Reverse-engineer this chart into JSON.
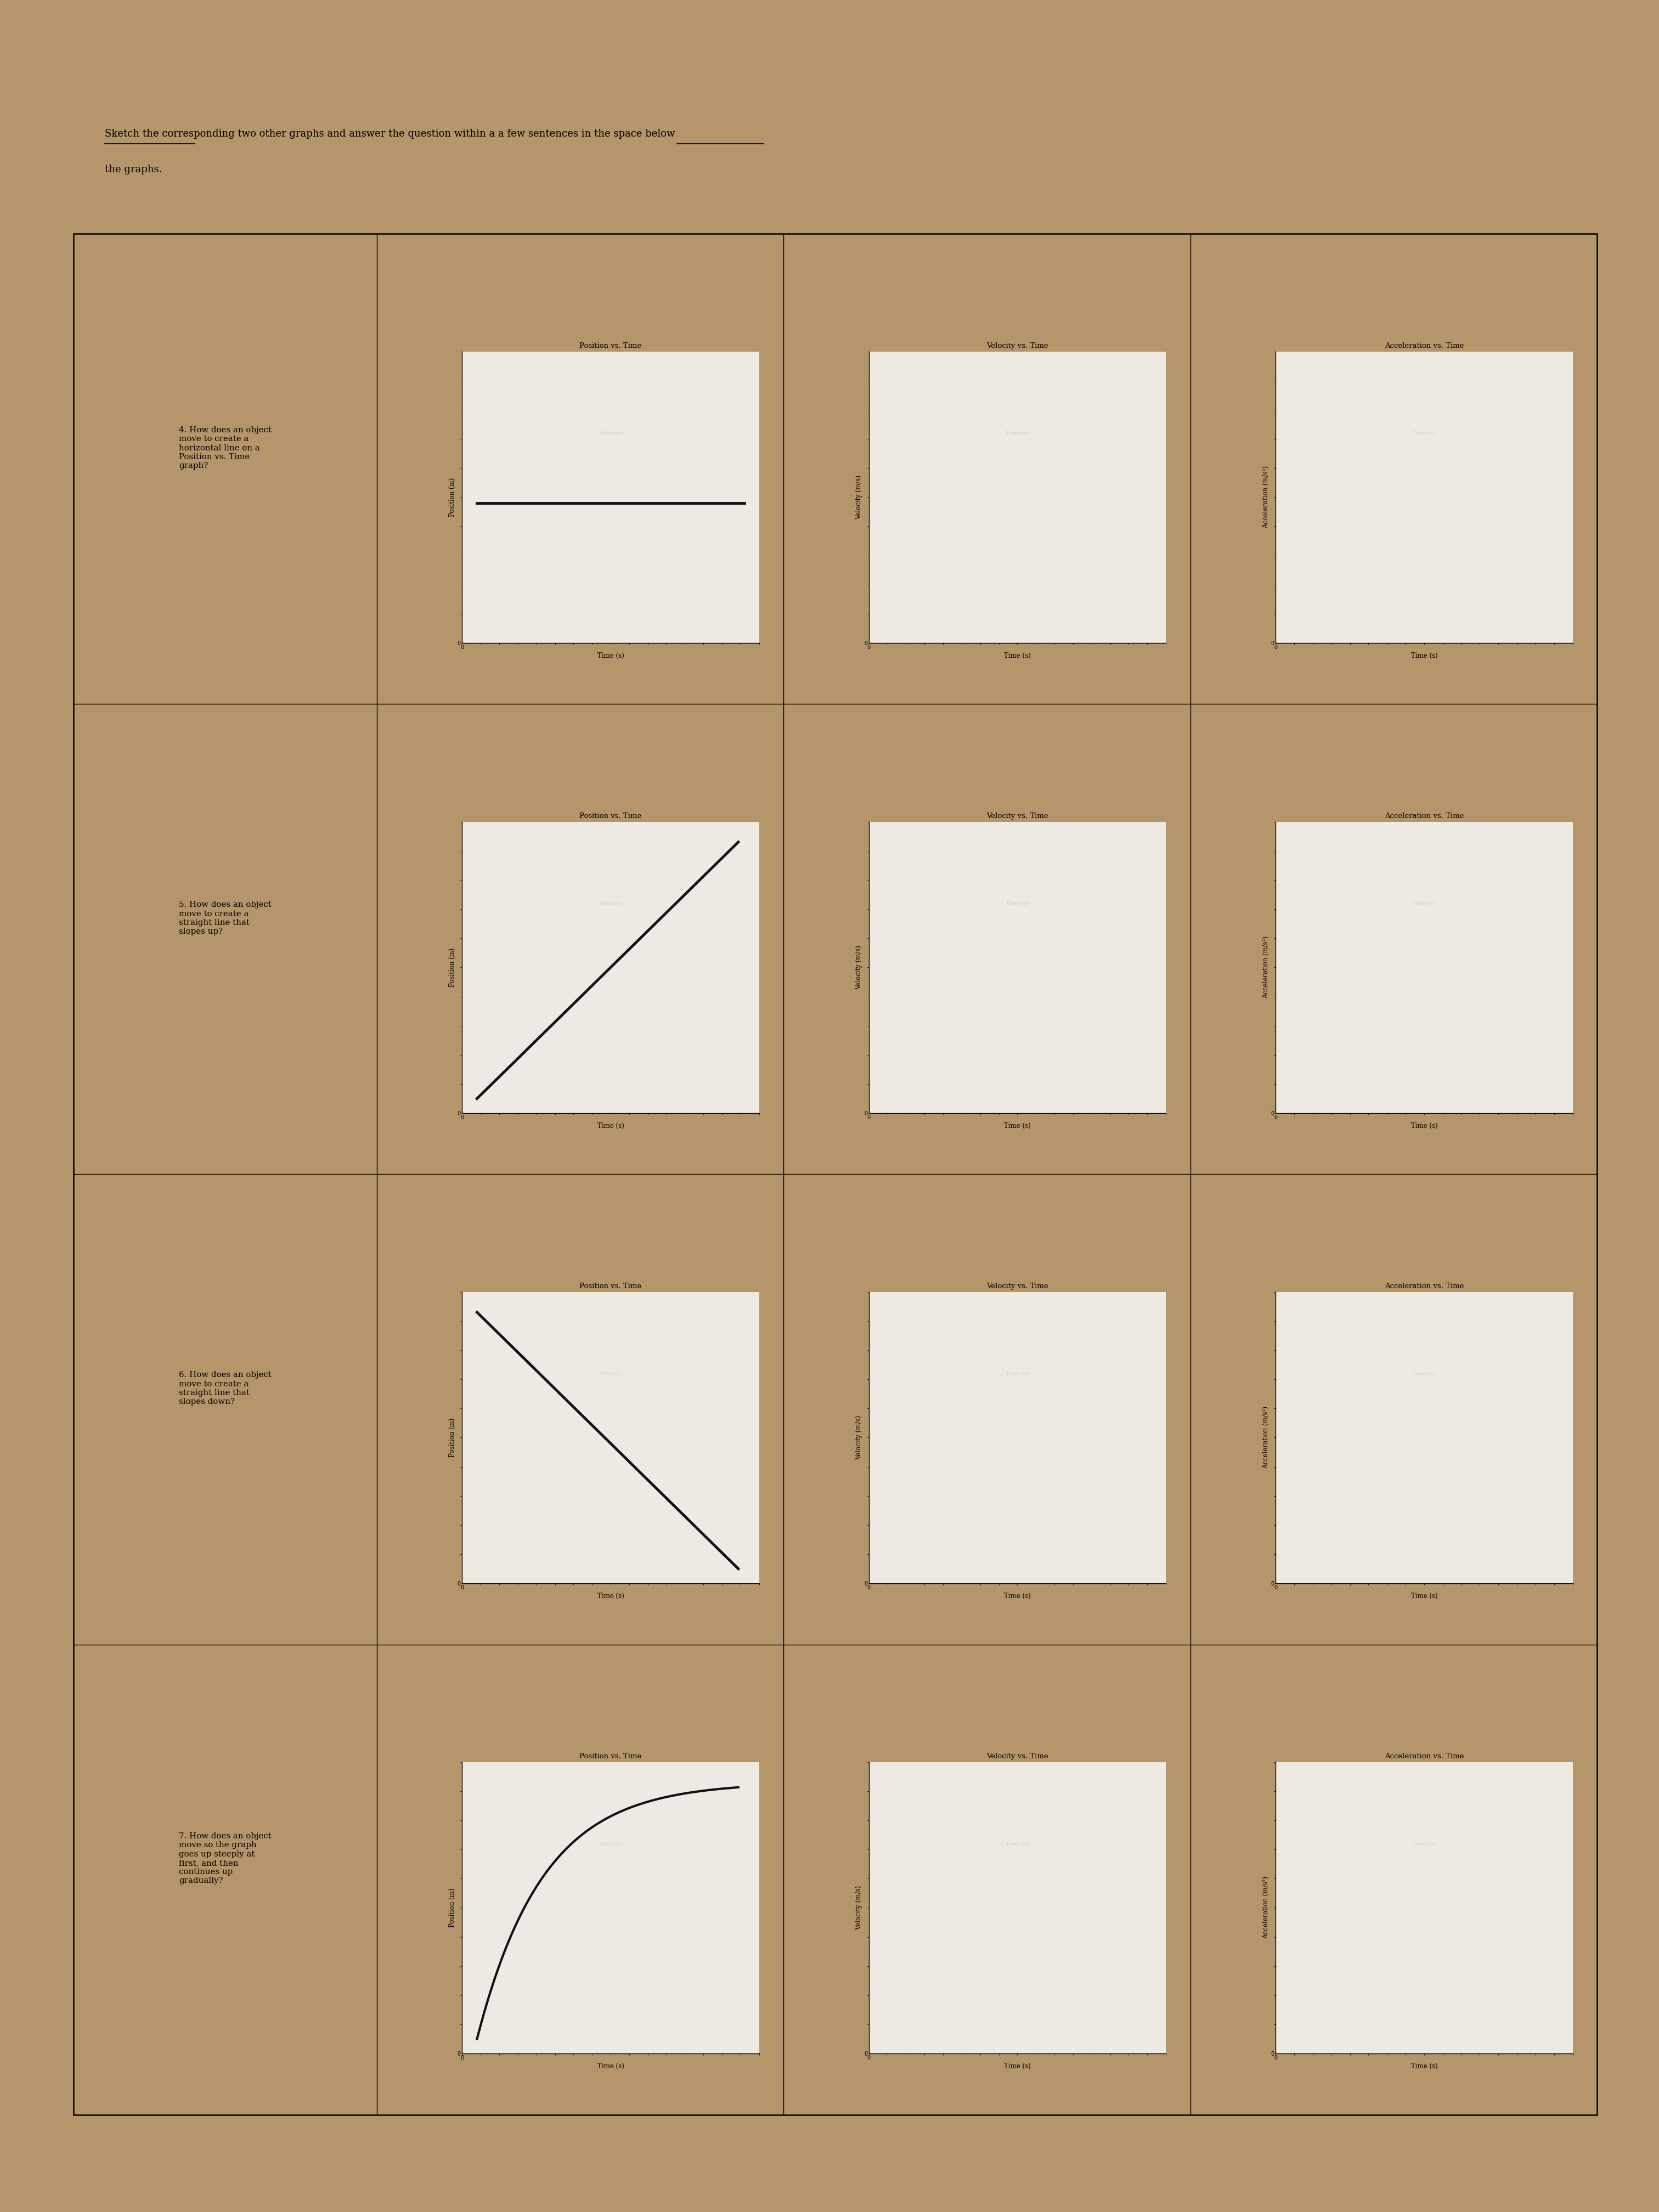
{
  "background_color": "#b5956a",
  "paper_color": "#f0ede8",
  "title_line1": "Sketch the corresponding two other graphs and answer the question within a a few sentences in the space below",
  "title_line2": "the graphs.",
  "rows": [
    {
      "number": "4.",
      "question": "How does an object\nmove to create a\nhorizontal line on a\nPosition vs. Time\ngraph?",
      "graphs": [
        {
          "title": "Position vs. Time",
          "xlabel": "Time (s)",
          "ylabel": "Position (m)",
          "line_type": "horizontal",
          "line_color": "#111111",
          "line_width": 3.5
        },
        {
          "title": "Velocity vs. Time",
          "xlabel": "Time (s)",
          "ylabel": "Velocity (m/s)",
          "line_type": "none",
          "line_color": "#111111",
          "line_width": 2
        },
        {
          "title": "Acceleration vs. Time",
          "xlabel": "Time (s)",
          "ylabel": "Acceleration (m/s²)",
          "line_type": "none",
          "line_color": "#111111",
          "line_width": 2
        }
      ]
    },
    {
      "number": "5.",
      "question": "How does an object\nmove to create a\nstraight line that\nslopes up?",
      "graphs": [
        {
          "title": "Position vs. Time",
          "xlabel": "Time (s)",
          "ylabel": "Position (m)",
          "line_type": "slope_up",
          "line_color": "#111111",
          "line_width": 3.5
        },
        {
          "title": "Velocity vs. Time",
          "xlabel": "Time (s)",
          "ylabel": "Velocity (m/s)",
          "line_type": "none",
          "line_color": "#111111",
          "line_width": 2
        },
        {
          "title": "Acceleration vs. Time",
          "xlabel": "Time (s)",
          "ylabel": "Acceleration (m/s²)",
          "line_type": "none",
          "line_color": "#111111",
          "line_width": 2
        }
      ]
    },
    {
      "number": "6.",
      "question": "How does an object\nmove to create a\nstraight line that\nslopes down?",
      "graphs": [
        {
          "title": "Position vs. Time",
          "xlabel": "Time (s)",
          "ylabel": "Position (m)",
          "line_type": "slope_down",
          "line_color": "#111111",
          "line_width": 3.5
        },
        {
          "title": "Velocity vs. Time",
          "xlabel": "Time (s)",
          "ylabel": "Velocity (m/s)",
          "line_type": "none",
          "line_color": "#111111",
          "line_width": 2
        },
        {
          "title": "Acceleration vs. Time",
          "xlabel": "Time (s)",
          "ylabel": "Acceleration (m/s²)",
          "line_type": "none",
          "line_color": "#111111",
          "line_width": 2
        }
      ]
    },
    {
      "number": "7.",
      "question": "How does an object\nmove so the graph\ngoes up steeply at\nfirst, and then\ncontinues up\ngradually?",
      "graphs": [
        {
          "title": "Position vs. Time",
          "xlabel": "Time (s)",
          "ylabel": "Position (m)",
          "line_type": "curve_decreasing_slope",
          "line_color": "#111111",
          "line_width": 3.0
        },
        {
          "title": "Velocity vs. Time",
          "xlabel": "Time (s)",
          "ylabel": "Velocity (m/s)",
          "line_type": "none",
          "line_color": "#111111",
          "line_width": 2
        },
        {
          "title": "Acceleration vs. Time",
          "xlabel": "Time (s)",
          "ylabel": "Acceleration (m/s²)",
          "line_type": "none",
          "line_color": "#111111",
          "line_width": 2
        }
      ]
    }
  ]
}
